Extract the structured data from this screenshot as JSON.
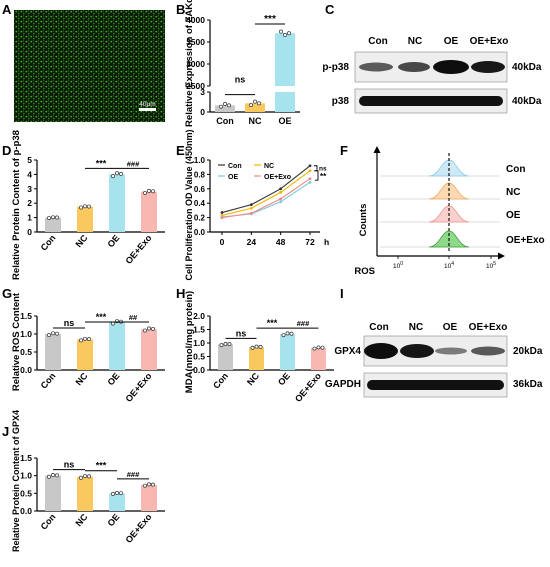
{
  "panels": {
    "A": {
      "letter": "A",
      "scalebar": "40μm"
    },
    "B": {
      "letter": "B",
      "ylabel": "Relative Expression of ZAKα"
    },
    "C": {
      "letter": "C",
      "lanes": [
        "Con",
        "NC",
        "OE",
        "OE+Exo"
      ],
      "bands": [
        "p-p38",
        "p38"
      ],
      "kda": [
        "40kDa",
        "40kDa"
      ]
    },
    "D": {
      "letter": "D",
      "ylabel": "Relative Protein Content of p-p38"
    },
    "E": {
      "letter": "E",
      "ylabel": "Cell Proliferation OD Value (450nm)"
    },
    "F": {
      "letter": "F",
      "xlabel": "ROS",
      "ylabel": "Counts",
      "labels": [
        "Con",
        "NC",
        "OE",
        "OE+Exo"
      ]
    },
    "G": {
      "letter": "G",
      "ylabel": "Relative ROS Content"
    },
    "H": {
      "letter": "H",
      "ylabel": "MDA(nmol/mg protein)"
    },
    "I": {
      "letter": "I",
      "lanes": [
        "Con",
        "NC",
        "OE",
        "OE+Exo"
      ],
      "bands": [
        "GPX4",
        "GAPDH"
      ],
      "kda": [
        "20kDa",
        "36kDa"
      ]
    },
    "J": {
      "letter": "J",
      "ylabel": "Relative Protein Content of GPX4"
    }
  },
  "colors": {
    "Con": "#c8c8c8",
    "NC": "#f9c85f",
    "OE": "#a6e3ec",
    "OE+Exo": "#f8b7b0"
  },
  "chart_data": [
    {
      "panel": "B",
      "type": "bar",
      "categories": [
        "Con",
        "NC",
        "OE"
      ],
      "values": [
        1.0,
        1.3,
        3700
      ],
      "ylabel": "Relative Expression of ZAKα",
      "ylim_lower": [
        0,
        3
      ],
      "ylim_upper": [
        2500,
        4000
      ],
      "yticks": [
        "0",
        "3",
        "2500",
        "3000",
        "3500",
        "4000"
      ],
      "significance": [
        {
          "pair": [
            "Con",
            "NC"
          ],
          "label": "ns"
        },
        {
          "pair": [
            "NC",
            "OE"
          ],
          "label": "***"
        }
      ]
    },
    {
      "panel": "D",
      "type": "bar",
      "categories": [
        "Con",
        "NC",
        "OE",
        "OE+Exo"
      ],
      "values": [
        1.0,
        1.75,
        4.0,
        2.8
      ],
      "ylabel": "Relative Protein Content of p-p38",
      "ylim": [
        0,
        5
      ],
      "yticks": [
        "0",
        "1",
        "2",
        "3",
        "4",
        "5"
      ],
      "significance": [
        {
          "pair": [
            "NC",
            "OE"
          ],
          "label": "***"
        },
        {
          "pair": [
            "OE",
            "OE+Exo"
          ],
          "label": "###"
        }
      ]
    },
    {
      "panel": "E",
      "type": "line",
      "x": [
        0,
        24,
        48,
        72
      ],
      "xunit": "h",
      "series": [
        {
          "name": "Con",
          "values": [
            0.27,
            0.38,
            0.6,
            0.92
          ]
        },
        {
          "name": "NC",
          "values": [
            0.23,
            0.33,
            0.55,
            0.85
          ]
        },
        {
          "name": "OE",
          "values": [
            0.21,
            0.25,
            0.42,
            0.69
          ]
        },
        {
          "name": "OE+Exo",
          "values": [
            0.2,
            0.26,
            0.46,
            0.74
          ]
        }
      ],
      "ylabel": "Cell Proliferation OD Value (450nm)",
      "ylim": [
        0,
        1.0
      ],
      "yticks": [
        "0.0",
        "0.2",
        "0.4",
        "0.6",
        "0.8",
        "1.0"
      ],
      "series_colors": [
        "#333333",
        "#f4b400",
        "#7cc8e0",
        "#f08a80"
      ],
      "significance": [
        {
          "label": "ns"
        },
        {
          "label": "**"
        }
      ]
    },
    {
      "panel": "G",
      "type": "bar",
      "categories": [
        "Con",
        "NC",
        "OE",
        "OE+Exo"
      ],
      "values": [
        1.0,
        0.85,
        1.33,
        1.13
      ],
      "ylabel": "Relative ROS Content",
      "ylim": [
        0,
        1.5
      ],
      "yticks": [
        "0.0",
        "0.5",
        "1.0",
        "1.5"
      ],
      "significance": [
        {
          "pair": [
            "Con",
            "NC"
          ],
          "label": "ns"
        },
        {
          "pair": [
            "NC",
            "OE"
          ],
          "label": "***"
        },
        {
          "pair": [
            "OE",
            "OE+Exo"
          ],
          "label": "##"
        }
      ]
    },
    {
      "panel": "H",
      "type": "bar",
      "categories": [
        "Con",
        "NC",
        "OE",
        "OE+Exo"
      ],
      "values": [
        0.95,
        0.85,
        1.33,
        0.82
      ],
      "ylabel": "MDA(nmol/mg protein)",
      "ylim": [
        0,
        2.0
      ],
      "yticks": [
        "0.0",
        "0.5",
        "1.0",
        "1.5",
        "2.0"
      ],
      "significance": [
        {
          "pair": [
            "Con",
            "NC"
          ],
          "label": "ns"
        },
        {
          "pair": [
            "NC",
            "OE"
          ],
          "label": "***"
        },
        {
          "pair": [
            "OE",
            "OE+Exo"
          ],
          "label": "###"
        }
      ]
    },
    {
      "panel": "J",
      "type": "bar",
      "categories": [
        "Con",
        "NC",
        "OE",
        "OE+Exo"
      ],
      "values": [
        1.0,
        0.97,
        0.5,
        0.74
      ],
      "ylabel": "Relative Protein Content of GPX4",
      "ylim": [
        0,
        1.5
      ],
      "yticks": [
        "0.0",
        "0.5",
        "1.0",
        "1.5"
      ],
      "significance": [
        {
          "pair": [
            "Con",
            "NC"
          ],
          "label": "ns"
        },
        {
          "pair": [
            "NC",
            "OE"
          ],
          "label": "***"
        },
        {
          "pair": [
            "OE",
            "OE+Exo"
          ],
          "label": "###"
        }
      ]
    }
  ]
}
